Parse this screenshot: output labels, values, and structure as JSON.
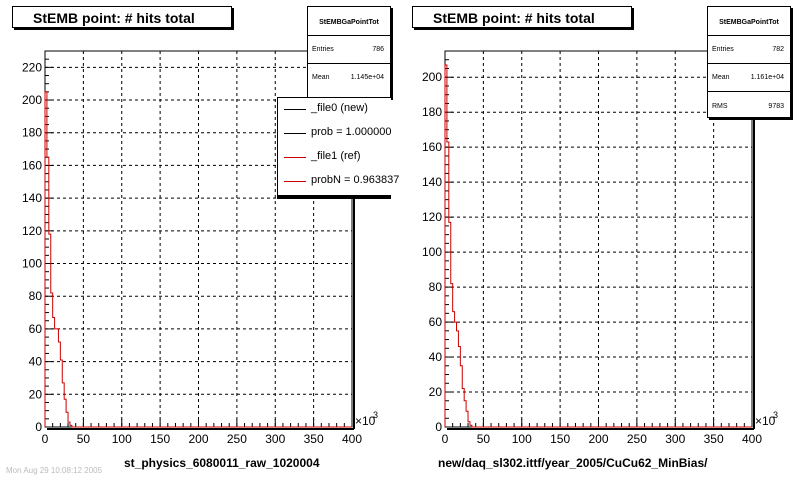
{
  "panels": [
    {
      "title": "StEMB point: # hits total",
      "stats": {
        "name": "StEMBGaPointTot",
        "rows": [
          {
            "label": "Entries",
            "value": "786"
          },
          {
            "label": "Mean",
            "value": "1.145e+04"
          }
        ]
      },
      "legend": [
        {
          "label": "_file0 (new)",
          "color": "#000000"
        },
        {
          "label": "prob = 1.000000",
          "color": "#000000"
        },
        {
          "label": "_file1 (ref)",
          "color": "#cc0000"
        },
        {
          "label": "probN = 0.963837",
          "color": "#cc0000"
        }
      ],
      "x_multiplier": "×10",
      "x_multiplier_exp": "3",
      "xlabel": "st_physics_6080011_raw_1020004"
    },
    {
      "title": "StEMB point: # hits total",
      "stats": {
        "name": "StEMBGaPointTot",
        "rows": [
          {
            "label": "Entries",
            "value": "782"
          },
          {
            "label": "Mean",
            "value": "1.161e+04"
          },
          {
            "label": "RMS",
            "value": "9783"
          }
        ]
      },
      "legend": [],
      "x_multiplier": "×10",
      "x_multiplier_exp": "3",
      "xlabel": "new/daq_sl302.ittf/year_2005/CuCu62_MinBias/"
    }
  ],
  "footer_text": "Mon Aug 29 10:08:12 2005",
  "chart_data": [
    {
      "type": "histogram",
      "title": "StEMB point: # hits total",
      "xlabel": "st_physics_6080011_raw_1020004",
      "xlim": [
        0,
        400
      ],
      "ylim": [
        0,
        230
      ],
      "x_ticks": [
        0,
        50,
        100,
        150,
        200,
        250,
        300,
        350,
        400
      ],
      "y_ticks": [
        0,
        20,
        40,
        60,
        80,
        100,
        120,
        140,
        160,
        180,
        200,
        220
      ],
      "grid": true,
      "legend_position": "top-right",
      "series": [
        {
          "name": "_file1 (ref)",
          "color": "#cc0000",
          "edges": [
            0,
            2.5,
            5,
            7.5,
            10,
            12.5,
            15,
            17.5,
            20,
            22.5,
            25,
            27.5,
            30,
            32.5,
            35,
            37.5,
            40,
            42.5,
            45,
            47.5,
            50,
            400
          ],
          "counts": [
            205,
            165,
            118,
            82,
            67,
            60,
            60,
            52,
            41,
            27,
            17,
            9,
            3,
            1,
            0,
            0,
            0,
            0,
            0,
            0,
            0
          ]
        }
      ]
    },
    {
      "type": "histogram",
      "title": "StEMB point: # hits total",
      "xlabel": "new/daq_sl302.ittf/year_2005/CuCu62_MinBias/",
      "xlim": [
        0,
        400
      ],
      "ylim": [
        0,
        215
      ],
      "x_ticks": [
        0,
        50,
        100,
        150,
        200,
        250,
        300,
        350,
        400
      ],
      "y_ticks": [
        0,
        20,
        40,
        60,
        80,
        100,
        120,
        140,
        160,
        180,
        200
      ],
      "grid": true,
      "series": [
        {
          "name": "_file1 (ref)",
          "color": "#cc0000",
          "edges": [
            0,
            2.5,
            5,
            7.5,
            10,
            12.5,
            15,
            17.5,
            20,
            22.5,
            25,
            27.5,
            30,
            32.5,
            35,
            37.5,
            40,
            42.5,
            45,
            47.5,
            50,
            400
          ],
          "counts": [
            207,
            163,
            117,
            82,
            66,
            60,
            55,
            46,
            35,
            22,
            15,
            9,
            3,
            1,
            0,
            0,
            0,
            0,
            0,
            0,
            0
          ]
        }
      ]
    }
  ]
}
